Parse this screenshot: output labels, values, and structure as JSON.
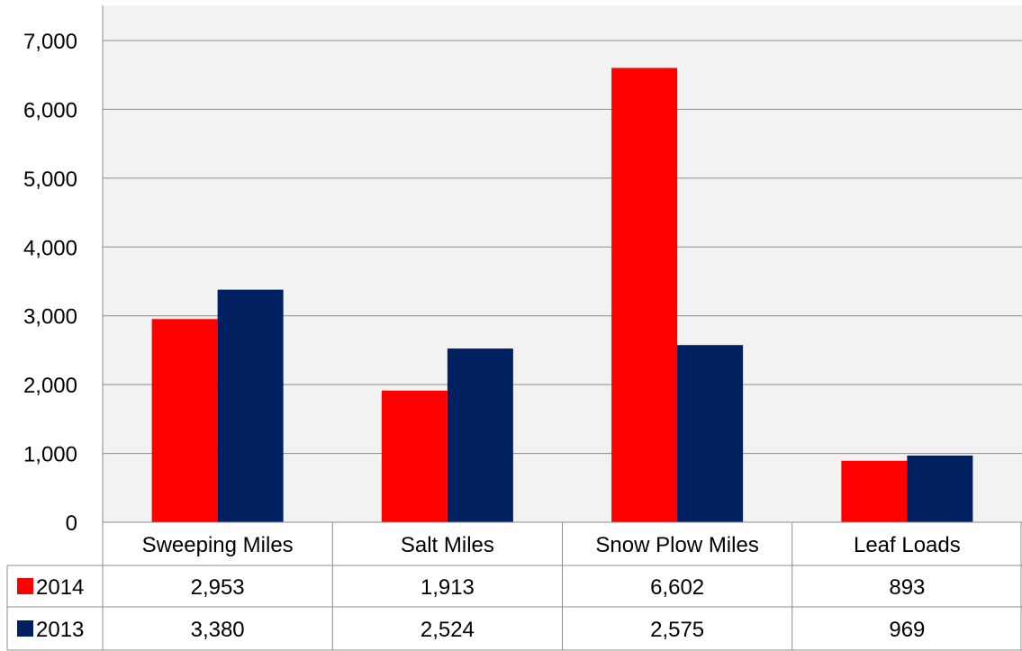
{
  "chart_data": {
    "type": "bar",
    "categories": [
      "Sweeping Miles",
      "Salt Miles",
      "Snow Plow Miles",
      "Leaf Loads"
    ],
    "series": [
      {
        "name": "2014",
        "color": "#ff0000",
        "values": [
          2953,
          1913,
          6602,
          893
        ],
        "value_labels": [
          "2,953",
          "1,913",
          "6,602",
          "893"
        ]
      },
      {
        "name": "2013",
        "color": "#002060",
        "values": [
          3380,
          2524,
          2575,
          969
        ],
        "value_labels": [
          "3,380",
          "2,524",
          "2,575",
          "969"
        ]
      }
    ],
    "ylim": [
      0,
      7000
    ],
    "yticks": [
      0,
      1000,
      2000,
      3000,
      4000,
      5000,
      6000,
      7000
    ],
    "ytick_labels": [
      "0",
      "1,000",
      "2,000",
      "3,000",
      "4,000",
      "5,000",
      "6,000",
      "7,000"
    ],
    "grid": true,
    "plot_background": "#f2f2f2",
    "data_table": true,
    "legend": "in data table",
    "title": "",
    "xlabel": "",
    "ylabel": ""
  }
}
